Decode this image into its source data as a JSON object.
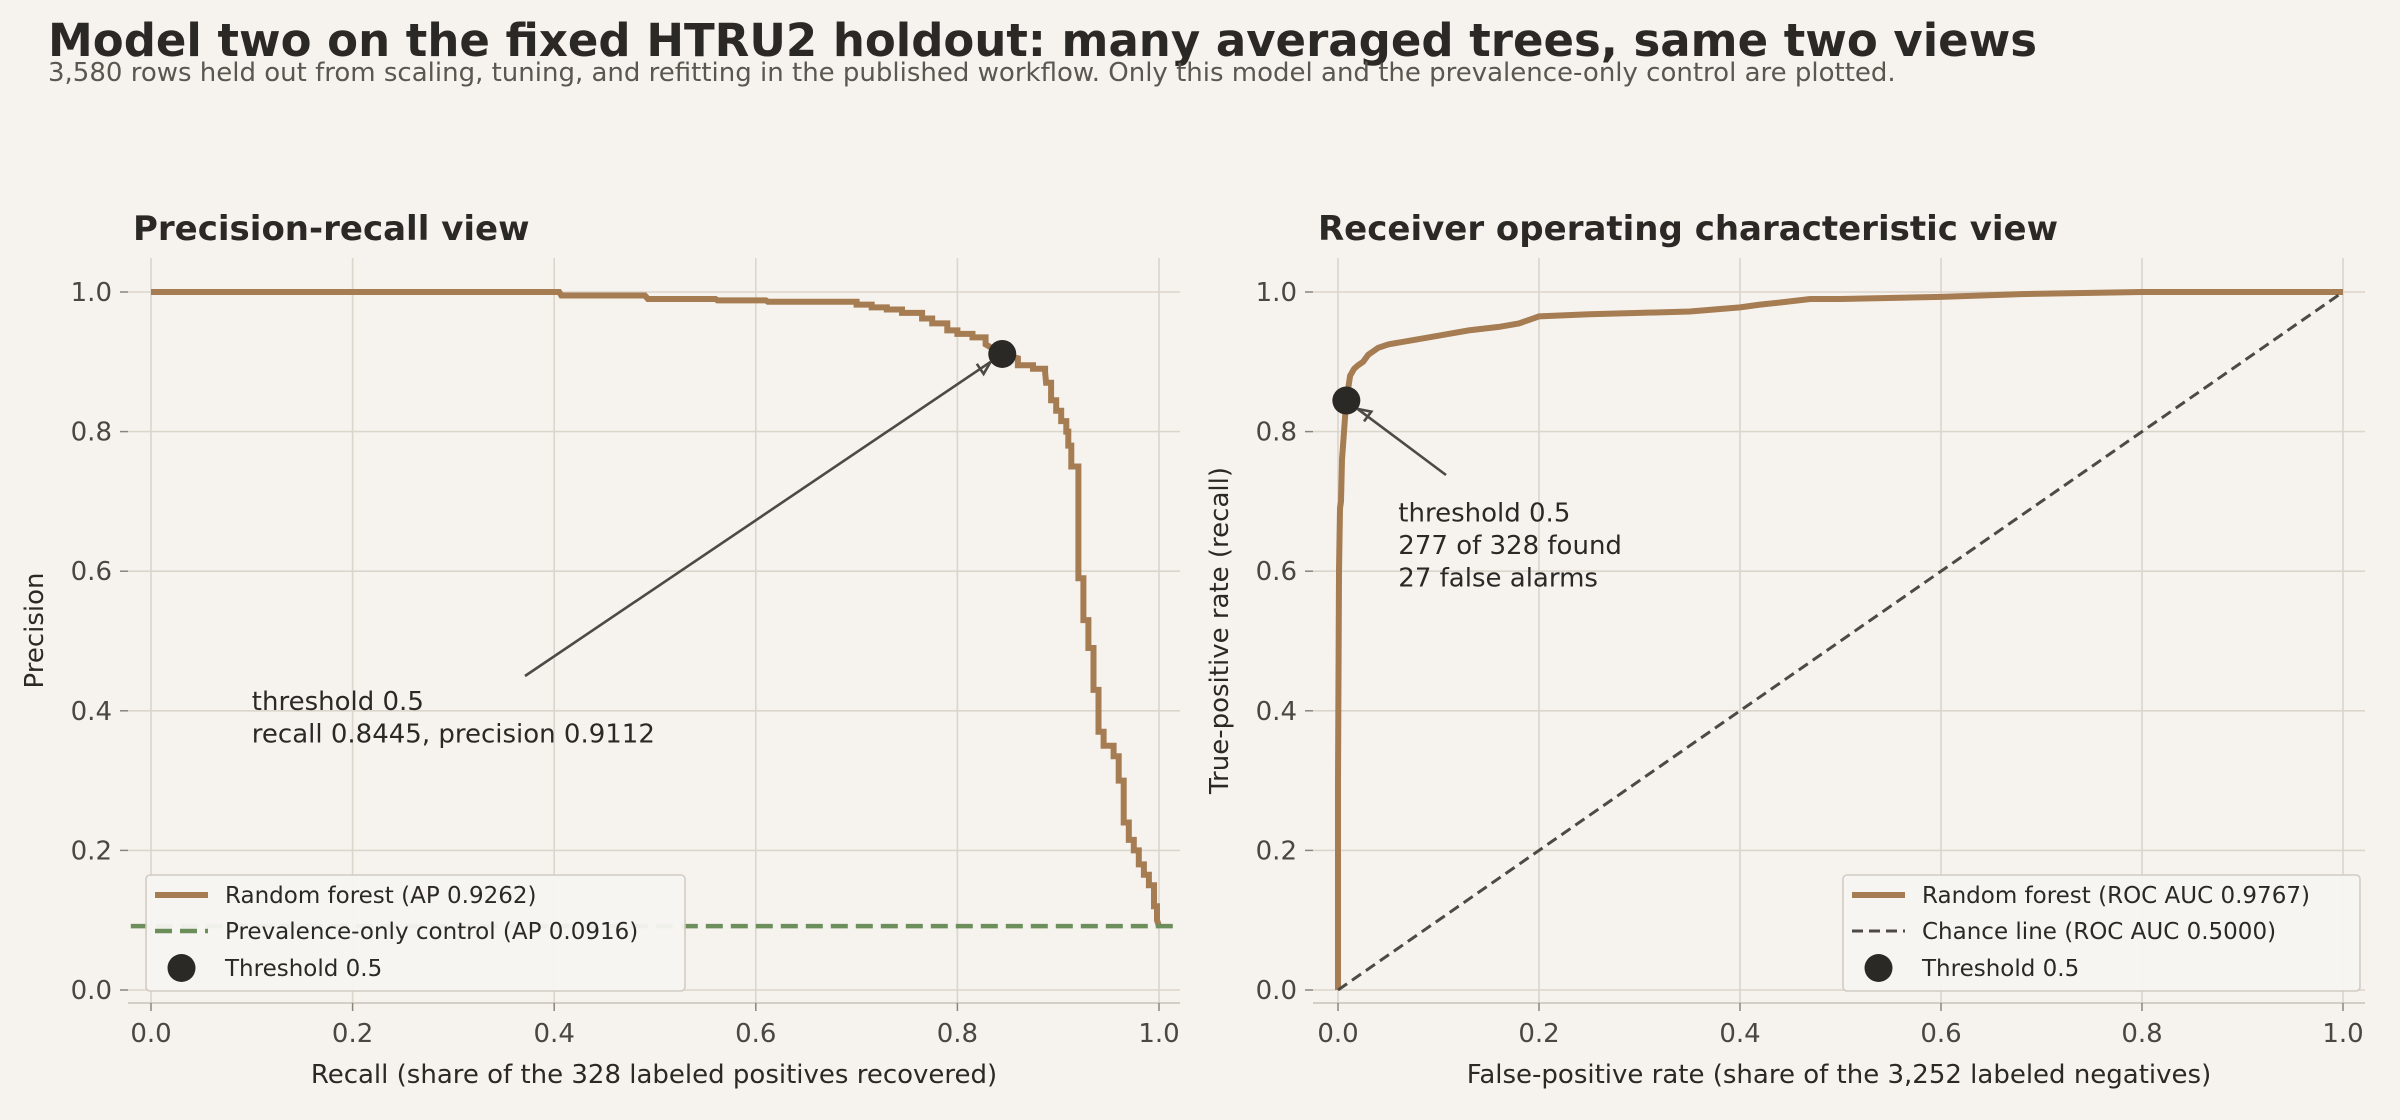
{
  "title": "Model two on the fixed HTRU2 holdout: many averaged trees, same two views",
  "subtitle": "3,580 rows held out from scaling, tuning, and refitting in the published workflow. Only this model and the prevalence-only control are plotted.",
  "colors": {
    "model": "#a67c52",
    "control": "#6b8e5a",
    "chance": "#4d4a46",
    "marker": "#2b2925",
    "grid": "#dbd5cc",
    "axis_text": "#4a4743",
    "background": "#f6f3ee"
  },
  "chart_data": [
    {
      "type": "line",
      "title": "Precision-recall view",
      "xlabel": "Recall (share of the 328 labeled positives recovered)",
      "ylabel": "Precision",
      "xlim": [
        0,
        1
      ],
      "ylim": [
        0,
        1
      ],
      "xticks": [
        0.0,
        0.2,
        0.4,
        0.6,
        0.8,
        1.0
      ],
      "yticks": [
        0.0,
        0.2,
        0.4,
        0.6,
        0.8,
        1.0
      ],
      "tick_labels_x": [
        "0.0",
        "0.2",
        "0.4",
        "0.6",
        "0.8",
        "1.0"
      ],
      "tick_labels_y": [
        "0.0",
        "0.2",
        "0.4",
        "0.6",
        "0.8",
        "1.0"
      ],
      "grid": true,
      "legend_position": "bottom-left",
      "series": [
        {
          "name": "Random forest (AP 0.9262)",
          "style": "step",
          "points": [
            [
              0,
              1.0
            ],
            [
              0.08,
              1.0
            ],
            [
              0.2,
              1.0
            ],
            [
              0.3,
              1.0
            ],
            [
              0.405,
              1.0
            ],
            [
              0.407,
              0.995
            ],
            [
              0.49,
              0.995
            ],
            [
              0.493,
              0.99
            ],
            [
              0.56,
              0.99
            ],
            [
              0.562,
              0.988
            ],
            [
              0.61,
              0.988
            ],
            [
              0.612,
              0.986
            ],
            [
              0.7,
              0.986
            ],
            [
              0.7,
              0.982
            ],
            [
              0.715,
              0.982
            ],
            [
              0.715,
              0.978
            ],
            [
              0.73,
              0.978
            ],
            [
              0.73,
              0.975
            ],
            [
              0.745,
              0.975
            ],
            [
              0.745,
              0.97
            ],
            [
              0.765,
              0.97
            ],
            [
              0.765,
              0.962
            ],
            [
              0.775,
              0.962
            ],
            [
              0.775,
              0.955
            ],
            [
              0.79,
              0.955
            ],
            [
              0.79,
              0.945
            ],
            [
              0.8,
              0.945
            ],
            [
              0.8,
              0.94
            ],
            [
              0.815,
              0.94
            ],
            [
              0.815,
              0.935
            ],
            [
              0.828,
              0.935
            ],
            [
              0.828,
              0.925
            ],
            [
              0.8445,
              0.9112
            ],
            [
              0.86,
              0.905
            ],
            [
              0.86,
              0.895
            ],
            [
              0.875,
              0.895
            ],
            [
              0.875,
              0.89
            ],
            [
              0.887,
              0.89
            ],
            [
              0.887,
              0.885
            ],
            [
              0.888,
              0.87
            ],
            [
              0.893,
              0.87
            ],
            [
              0.893,
              0.845
            ],
            [
              0.898,
              0.845
            ],
            [
              0.898,
              0.83
            ],
            [
              0.903,
              0.83
            ],
            [
              0.903,
              0.815
            ],
            [
              0.908,
              0.815
            ],
            [
              0.908,
              0.8
            ],
            [
              0.91,
              0.8
            ],
            [
              0.91,
              0.78
            ],
            [
              0.913,
              0.78
            ],
            [
              0.913,
              0.75
            ],
            [
              0.92,
              0.75
            ],
            [
              0.92,
              0.59
            ],
            [
              0.925,
              0.59
            ],
            [
              0.925,
              0.53
            ],
            [
              0.93,
              0.53
            ],
            [
              0.93,
              0.49
            ],
            [
              0.935,
              0.49
            ],
            [
              0.935,
              0.43
            ],
            [
              0.94,
              0.43
            ],
            [
              0.94,
              0.37
            ],
            [
              0.945,
              0.37
            ],
            [
              0.945,
              0.35
            ],
            [
              0.955,
              0.35
            ],
            [
              0.955,
              0.335
            ],
            [
              0.96,
              0.335
            ],
            [
              0.96,
              0.3
            ],
            [
              0.965,
              0.3
            ],
            [
              0.965,
              0.24
            ],
            [
              0.97,
              0.24
            ],
            [
              0.97,
              0.215
            ],
            [
              0.975,
              0.215
            ],
            [
              0.975,
              0.2
            ],
            [
              0.98,
              0.2
            ],
            [
              0.98,
              0.18
            ],
            [
              0.985,
              0.18
            ],
            [
              0.985,
              0.165
            ],
            [
              0.99,
              0.165
            ],
            [
              0.99,
              0.15
            ],
            [
              0.995,
              0.15
            ],
            [
              0.995,
              0.12
            ],
            [
              0.998,
              0.12
            ],
            [
              0.998,
              0.1
            ],
            [
              1.0,
              0.0916
            ]
          ]
        },
        {
          "name": "Prevalence-only control (AP 0.0916)",
          "style": "dashed",
          "points": [
            [
              -0.02,
              0.0916
            ],
            [
              1.02,
              0.0916
            ]
          ]
        }
      ],
      "marker": {
        "name": "Threshold 0.5",
        "x": 0.8445,
        "y": 0.9112
      },
      "annotation": {
        "lines": [
          "threshold 0.5",
          "recall 0.8445, precision 0.9112"
        ],
        "text_x": 0.1,
        "text_y": 0.42
      }
    },
    {
      "type": "line",
      "title": "Receiver operating characteristic view",
      "xlabel": "False-positive rate (share of the 3,252 labeled negatives)",
      "ylabel": "True-positive rate (recall)",
      "xlim": [
        0,
        1
      ],
      "ylim": [
        0,
        1
      ],
      "xticks": [
        0.0,
        0.2,
        0.4,
        0.6,
        0.8,
        1.0
      ],
      "yticks": [
        0.0,
        0.2,
        0.4,
        0.6,
        0.8,
        1.0
      ],
      "tick_labels_x": [
        "0.0",
        "0.2",
        "0.4",
        "0.6",
        "0.8",
        "1.0"
      ],
      "tick_labels_y": [
        "0.0",
        "0.2",
        "0.4",
        "0.6",
        "0.8",
        "1.0"
      ],
      "grid": true,
      "legend_position": "bottom-right",
      "series": [
        {
          "name": "Random forest (ROC AUC 0.9767)",
          "style": "step",
          "points": [
            [
              0,
              0
            ],
            [
              0,
              0.3
            ],
            [
              0.001,
              0.6
            ],
            [
              0.002,
              0.69
            ],
            [
              0.003,
              0.7
            ],
            [
              0.004,
              0.76
            ],
            [
              0.005,
              0.78
            ],
            [
              0.006,
              0.8
            ],
            [
              0.0083,
              0.8445
            ],
            [
              0.01,
              0.86
            ],
            [
              0.012,
              0.88
            ],
            [
              0.016,
              0.89
            ],
            [
              0.02,
              0.895
            ],
            [
              0.025,
              0.9
            ],
            [
              0.03,
              0.91
            ],
            [
              0.04,
              0.92
            ],
            [
              0.05,
              0.925
            ],
            [
              0.07,
              0.93
            ],
            [
              0.09,
              0.935
            ],
            [
              0.11,
              0.94
            ],
            [
              0.13,
              0.945
            ],
            [
              0.16,
              0.95
            ],
            [
              0.18,
              0.955
            ],
            [
              0.19,
              0.96
            ],
            [
              0.2,
              0.965
            ],
            [
              0.25,
              0.968
            ],
            [
              0.3,
              0.97
            ],
            [
              0.35,
              0.972
            ],
            [
              0.4,
              0.978
            ],
            [
              0.42,
              0.982
            ],
            [
              0.44,
              0.985
            ],
            [
              0.47,
              0.99
            ],
            [
              0.5,
              0.99
            ],
            [
              0.6,
              0.993
            ],
            [
              0.68,
              0.997
            ],
            [
              0.8,
              1.0
            ],
            [
              1.0,
              1.0
            ]
          ]
        },
        {
          "name": "Chance line (ROC AUC 0.5000)",
          "style": "dashed",
          "points": [
            [
              0,
              0
            ],
            [
              1,
              1
            ]
          ]
        }
      ],
      "marker": {
        "name": "Threshold 0.5",
        "x": 0.0083,
        "y": 0.8445
      },
      "annotation": {
        "lines": [
          "threshold 0.5",
          "277 of 328 found",
          "27 false alarms"
        ],
        "text_x": 0.06,
        "text_y": 0.69
      }
    }
  ]
}
